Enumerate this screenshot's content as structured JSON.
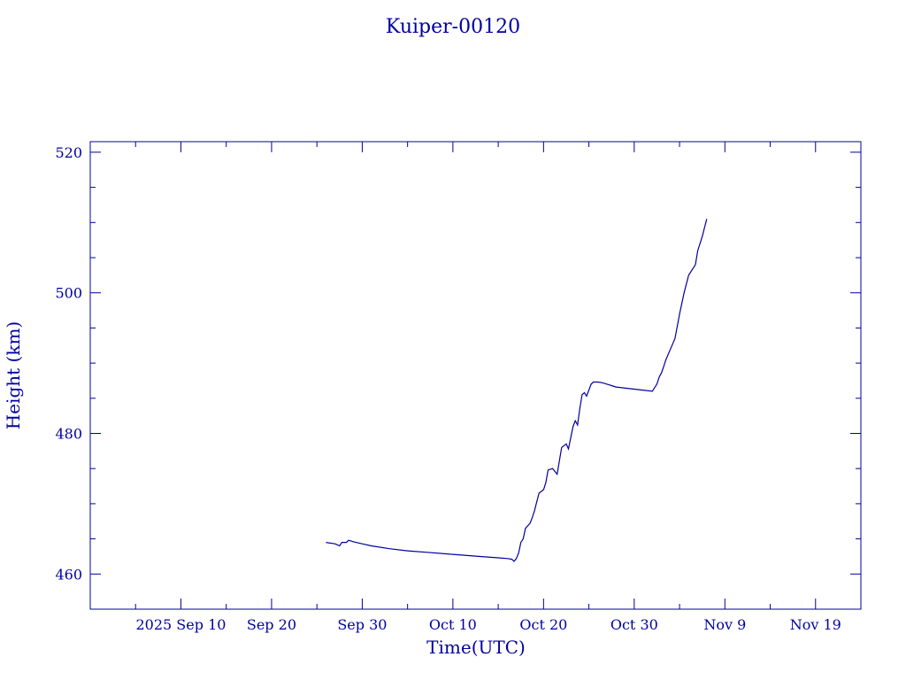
{
  "chart_data": {
    "type": "line",
    "title": "Kuiper-00120",
    "xlabel": "Time(UTC)",
    "ylabel": "Height (km)",
    "color": "#0000a0",
    "grid": false,
    "legend": "none",
    "x_axis": {
      "type": "date",
      "range": [
        "2025-08-31",
        "2025-11-24"
      ],
      "tick_labels": [
        {
          "date": "2025-09-10",
          "label": "2025 Sep 10"
        },
        {
          "date": "2025-09-20",
          "label": "Sep 20"
        },
        {
          "date": "2025-09-30",
          "label": "Sep 30"
        },
        {
          "date": "2025-10-10",
          "label": "Oct 10"
        },
        {
          "date": "2025-10-20",
          "label": "Oct 20"
        },
        {
          "date": "2025-10-30",
          "label": "Oct 30"
        },
        {
          "date": "2025-11-09",
          "label": "Nov  9"
        },
        {
          "date": "2025-11-19",
          "label": "Nov 19"
        }
      ]
    },
    "y_axis": {
      "range": [
        455,
        521.5
      ],
      "tick_labels": [
        {
          "value": 460,
          "label": "460"
        },
        {
          "value": 480,
          "label": "480"
        },
        {
          "value": 500,
          "label": "500"
        },
        {
          "value": 520,
          "label": "520"
        }
      ]
    },
    "series": [
      {
        "x": [
          "2025-09-26T00:00",
          "2025-09-27T00:00",
          "2025-09-27T12:00",
          "2025-09-27T18:00",
          "2025-09-28T06:00",
          "2025-09-28T12:00",
          "2025-09-29T00:00",
          "2025-09-30T00:00",
          "2025-10-01T00:00",
          "2025-10-03T00:00",
          "2025-10-05T00:00",
          "2025-10-07T00:00",
          "2025-10-10T00:00",
          "2025-10-13T00:00",
          "2025-10-15T00:00",
          "2025-10-16T00:00",
          "2025-10-16T12:00",
          "2025-10-16T18:00",
          "2025-10-17T00:00",
          "2025-10-17T06:00",
          "2025-10-17T12:00",
          "2025-10-17T18:00",
          "2025-10-18T00:00",
          "2025-10-18T12:00",
          "2025-10-18T18:00",
          "2025-10-19T00:00",
          "2025-10-19T12:00",
          "2025-10-20T00:00",
          "2025-10-20T06:00",
          "2025-10-20T12:00",
          "2025-10-21T00:00",
          "2025-10-21T12:00",
          "2025-10-22T00:00",
          "2025-10-22T12:00",
          "2025-10-22T18:00",
          "2025-10-23T06:00",
          "2025-10-23T12:00",
          "2025-10-23T18:00",
          "2025-10-24T00:00",
          "2025-10-24T06:00",
          "2025-10-24T12:00",
          "2025-10-24T18:00",
          "2025-10-25T06:00",
          "2025-10-25T12:00",
          "2025-10-25T18:00",
          "2025-10-26T00:00",
          "2025-10-26T12:00",
          "2025-10-26T18:00",
          "2025-10-27T00:00",
          "2025-10-27T06:00",
          "2025-10-27T12:00",
          "2025-10-28T00:00",
          "2025-10-30T00:00",
          "2025-11-01T00:00",
          "2025-11-01T12:00",
          "2025-11-01T18:00",
          "2025-11-02T00:00",
          "2025-11-02T06:00",
          "2025-11-02T12:00",
          "2025-11-03T00:00",
          "2025-11-03T12:00",
          "2025-11-04T00:00",
          "2025-11-04T12:00",
          "2025-11-05T00:00",
          "2025-11-05T12:00",
          "2025-11-05T18:00",
          "2025-11-06T00:00",
          "2025-11-06T12:00",
          "2025-11-07T00:00"
        ],
        "y": [
          464.5,
          464.3,
          464.0,
          464.5,
          464.5,
          464.8,
          464.6,
          464.3,
          464.0,
          463.6,
          463.3,
          463.1,
          462.8,
          462.5,
          462.3,
          462.2,
          462.1,
          461.8,
          462.2,
          463.0,
          464.5,
          465.0,
          466.5,
          467.2,
          468.0,
          469.0,
          471.5,
          472.0,
          473.0,
          474.8,
          475.0,
          474.2,
          478.0,
          478.5,
          477.8,
          481.0,
          481.8,
          481.2,
          483.5,
          485.5,
          485.8,
          485.3,
          487.0,
          487.3,
          487.3,
          487.3,
          487.2,
          487.1,
          487.0,
          486.9,
          486.8,
          486.6,
          486.3,
          486.0,
          487.0,
          488.0,
          488.6,
          489.5,
          490.5,
          492.0,
          493.5,
          497.0,
          500.0,
          502.5,
          503.5,
          504.0,
          506.0,
          508.0,
          510.5
        ]
      }
    ]
  }
}
